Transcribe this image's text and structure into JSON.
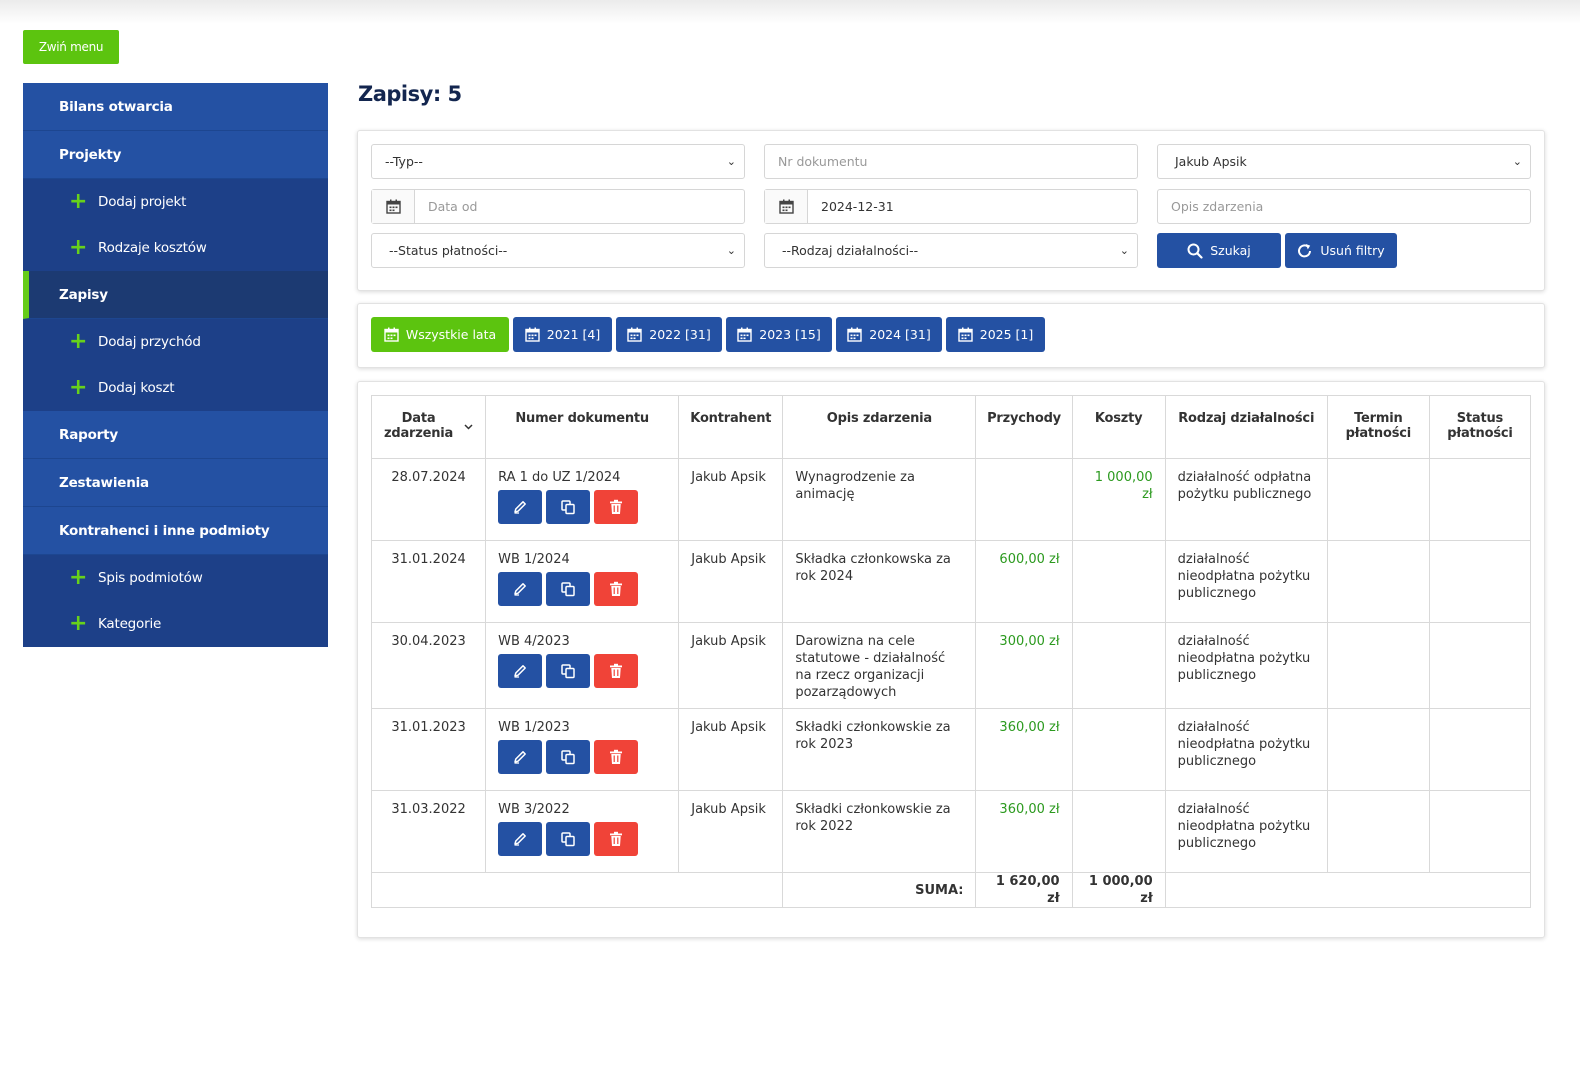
{
  "toggle_menu_label": "Zwiń menu",
  "sidebar": {
    "items": [
      {
        "label": "Bilans otwarcia",
        "type": "main"
      },
      {
        "label": "Projekty",
        "type": "main"
      },
      {
        "label": "Dodaj projekt",
        "type": "sub"
      },
      {
        "label": "Rodzaje kosztów",
        "type": "sub"
      },
      {
        "label": "Zapisy",
        "type": "active"
      },
      {
        "label": "Dodaj przychód",
        "type": "sub"
      },
      {
        "label": "Dodaj koszt",
        "type": "sub"
      },
      {
        "label": "Raporty",
        "type": "main"
      },
      {
        "label": "Zestawienia",
        "type": "main"
      },
      {
        "label": "Kontrahenci i inne podmioty",
        "type": "main"
      },
      {
        "label": "Spis podmiotów",
        "type": "sub"
      },
      {
        "label": "Kategorie",
        "type": "sub"
      }
    ]
  },
  "page_title": "Zapisy: 5",
  "filters": {
    "type_select": "--Typ--",
    "doc_number_placeholder": "Nr dokumentu",
    "person_select": "Jakub Apsik",
    "date_from_placeholder": "Data od",
    "date_to_value": "2024-12-31",
    "description_placeholder": "Opis zdarzenia",
    "payment_status_select": "--Status płatności--",
    "activity_type_select": "--Rodzaj działalności--",
    "search_label": "Szukaj",
    "clear_label": "Usuń filtry"
  },
  "year_tabs": [
    {
      "label": "Wszystkie lata",
      "active": true
    },
    {
      "label": "2021 [4]",
      "active": false
    },
    {
      "label": "2022 [31]",
      "active": false
    },
    {
      "label": "2023 [15]",
      "active": false
    },
    {
      "label": "2024 [31]",
      "active": false
    },
    {
      "label": "2025 [1]",
      "active": false
    }
  ],
  "table": {
    "headers": [
      "Data zdarzenia",
      "Numer dokumentu",
      "Kontrahent",
      "Opis zdarzenia",
      "Przychody",
      "Koszty",
      "Rodzaj działalności",
      "Termin płatności",
      "Status płatności"
    ],
    "rows": [
      {
        "date": "28.07.2024",
        "doc": "RA 1 do UZ 1/2024",
        "contractor": "Jakub Apsik",
        "desc": "Wynagrodzenie za animację",
        "income": "",
        "cost": "1 000,00 zł",
        "activity": "działalność odpłatna pożytku publicznego",
        "due": "",
        "status": ""
      },
      {
        "date": "31.01.2024",
        "doc": "WB 1/2024",
        "contractor": "Jakub Apsik",
        "desc": "Składka członkowska za rok 2024",
        "income": "600,00 zł",
        "cost": "",
        "activity": "działalność nieodpłatna pożytku publicznego",
        "due": "",
        "status": ""
      },
      {
        "date": "30.04.2023",
        "doc": "WB 4/2023",
        "contractor": "Jakub Apsik",
        "desc": "Darowizna na cele statutowe - działalność na rzecz organizacji pozarządowych",
        "income": "300,00 zł",
        "cost": "",
        "activity": "działalność nieodpłatna pożytku publicznego",
        "due": "",
        "status": ""
      },
      {
        "date": "31.01.2023",
        "doc": "WB 1/2023",
        "contractor": "Jakub Apsik",
        "desc": "Składki członkowskie za rok 2023",
        "income": "360,00 zł",
        "cost": "",
        "activity": "działalność nieodpłatna pożytku publicznego",
        "due": "",
        "status": ""
      },
      {
        "date": "31.03.2022",
        "doc": "WB 3/2022",
        "contractor": "Jakub Apsik",
        "desc": "Składki członkowskie za rok 2022",
        "income": "360,00 zł",
        "cost": "",
        "activity": "działalność nieodpłatna pożytku publicznego",
        "due": "",
        "status": ""
      }
    ],
    "footer": {
      "label": "SUMA:",
      "income_total": "1 620,00 zł",
      "cost_total": "1 000,00 zł"
    }
  },
  "colors": {
    "primary": "#2451a3",
    "accent": "#5cc40f",
    "danger": "#f04338",
    "income": "#2c9a1f"
  }
}
